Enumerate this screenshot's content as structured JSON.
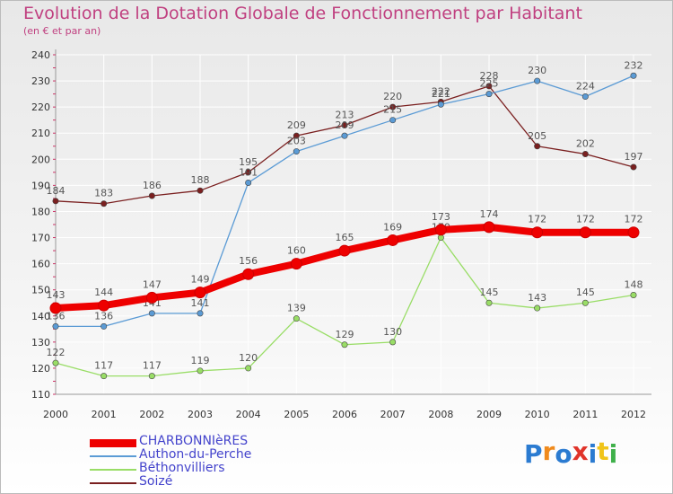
{
  "header": {
    "title": "Evolution de la Dotation Globale de Fonctionnement par Habitant",
    "subtitle": "(en € et par an)"
  },
  "logo": {
    "letters": [
      "P",
      "r",
      "o",
      "x",
      "i",
      "t",
      "i"
    ],
    "colors": [
      "#2b7bd1",
      "#f08a1c",
      "#2b7bd1",
      "#e0342a",
      "#2b7bd1",
      "#f0c419",
      "#3fb04a"
    ]
  },
  "chart_data": {
    "type": "line",
    "x": [
      2000,
      2001,
      2002,
      2003,
      2004,
      2005,
      2006,
      2007,
      2008,
      2009,
      2010,
      2011,
      2012
    ],
    "ylim": [
      110,
      240
    ],
    "yticks": [
      110,
      120,
      130,
      140,
      150,
      160,
      170,
      180,
      190,
      200,
      210,
      220,
      230,
      240
    ],
    "grid": true,
    "legend_placement": "bottom-left",
    "series": [
      {
        "name": "Soizé",
        "color": "#7a1f1f",
        "values": [
          184,
          183,
          186,
          188,
          195,
          209,
          213,
          220,
          222,
          228,
          205,
          202,
          197
        ]
      },
      {
        "name": "Authon-du-Perche",
        "color": "#5b9bd5",
        "values": [
          136,
          136,
          141,
          141,
          191,
          203,
          209,
          215,
          221,
          225,
          230,
          224,
          232
        ]
      },
      {
        "name": "Béthonvilliers",
        "color": "#99dd66",
        "values": [
          122,
          117,
          117,
          119,
          120,
          139,
          129,
          130,
          170,
          145,
          143,
          145,
          148
        ]
      },
      {
        "name": "CHARBONNIèRES",
        "color": "#ee0000",
        "values": [
          143,
          144,
          147,
          149,
          156,
          160,
          165,
          169,
          173,
          174,
          172,
          172,
          172
        ]
      }
    ],
    "legend_order": [
      "CHARBONNIèRES",
      "Authon-du-Perche",
      "Béthonvilliers",
      "Soizé"
    ]
  }
}
